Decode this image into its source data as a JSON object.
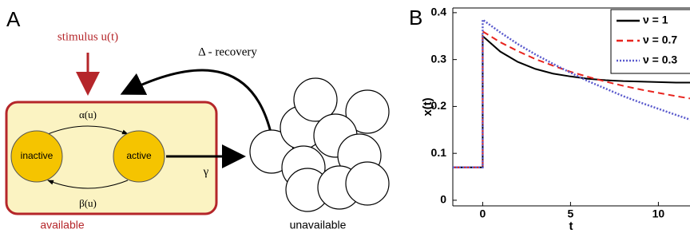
{
  "diagram": {
    "panel_label": "A",
    "stimulus": "stimulus u(t)",
    "recovery": "Δ - recovery",
    "alpha": "α(u)",
    "beta": "β(u)",
    "inactive": "inactive",
    "active": "active",
    "gamma": "γ",
    "available": "available",
    "unavailable": "unavailable"
  },
  "chart_data": {
    "type": "line",
    "panel_label": "B",
    "xlabel": "t",
    "ylabel": "x(t)",
    "x": [
      -1.7,
      0,
      0,
      1,
      2,
      3,
      4,
      5,
      6,
      7,
      8,
      9,
      10,
      11,
      11.8
    ],
    "series": [
      {
        "name": "ν = 1",
        "color": "#000000",
        "style": "solid",
        "values": [
          0.07,
          0.07,
          0.35,
          0.317,
          0.295,
          0.28,
          0.27,
          0.264,
          0.259,
          0.256,
          0.254,
          0.253,
          0.252,
          0.251,
          0.251
        ]
      },
      {
        "name": "ν = 0.7",
        "color": "#e8251f",
        "style": "dashed",
        "values": [
          0.07,
          0.07,
          0.36,
          0.337,
          0.318,
          0.301,
          0.287,
          0.274,
          0.263,
          0.253,
          0.244,
          0.236,
          0.229,
          0.222,
          0.217
        ]
      },
      {
        "name": "ν = 0.3",
        "color": "#5a5acd",
        "style": "dotted",
        "values": [
          0.07,
          0.07,
          0.385,
          0.358,
          0.333,
          0.311,
          0.291,
          0.272,
          0.254,
          0.238,
          0.222,
          0.208,
          0.195,
          0.182,
          0.172
        ]
      }
    ],
    "xlim": [
      -1.7,
      11.8
    ],
    "ylim": [
      -0.012,
      0.41
    ],
    "xticks": [
      0,
      5,
      10
    ],
    "yticks": [
      0,
      0.1,
      0.2,
      0.3,
      0.4
    ],
    "legend": "upper right"
  }
}
